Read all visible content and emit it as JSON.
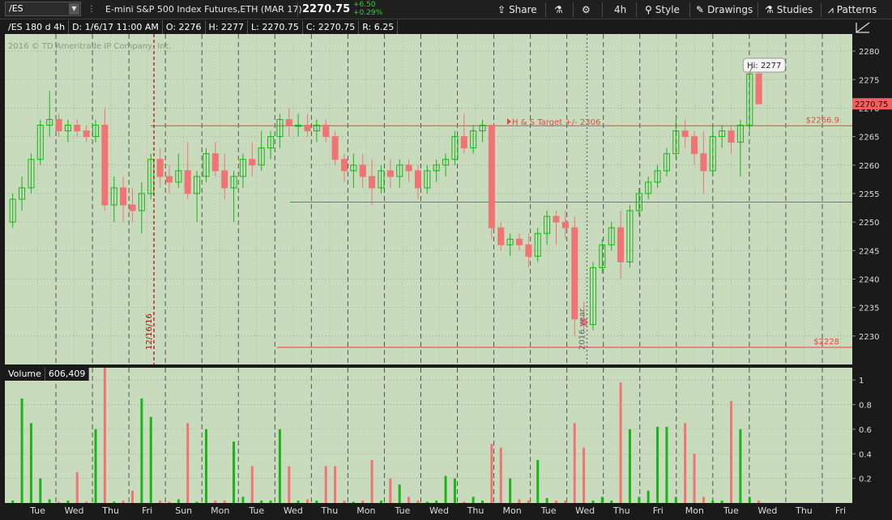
{
  "toolbar": {
    "symbol": "/ES",
    "description": "E-mini S&P 500 Index Futures,ETH (MAR 17)",
    "last_price": "2270.75",
    "change": "+6.50",
    "change_pct": "+0.29%",
    "share_label": "Share",
    "timeframe_label": "4h",
    "style_label": "Style",
    "drawings_label": "Drawings",
    "studies_label": "Studies",
    "patterns_label": "Patterns"
  },
  "info_bar": {
    "chart_name": "/ES 180 d 4h",
    "date": "D: 1/6/17 11:00 AM",
    "open": "O: 2276",
    "high": "H: 2277",
    "low": "L: 2270.75",
    "close": "C: 2270.75",
    "range": "R: 6.25"
  },
  "watermark": "2016 © TD Ameritrade IP Company, Inc.",
  "volume_header": {
    "label": "Volume",
    "value": "606,409"
  },
  "colors": {
    "up": "#18b418",
    "down": "#f07474",
    "panel_bg": "#c8dcbd",
    "hline": "#e64646",
    "price_tag": "#f06060"
  },
  "chart_data": [
    {
      "type": "candlestick",
      "ylim": [
        2225,
        2283
      ],
      "yticks": [
        2230,
        2235,
        2240,
        2245,
        2250,
        2255,
        2260,
        2265,
        2270,
        2275,
        2280
      ],
      "x_day_labels": [
        "Tue",
        "Wed",
        "Thu",
        "Fri",
        "Sun",
        "Mon",
        "Tue",
        "Wed",
        "Thu",
        "Mon",
        "Tue",
        "Wed",
        "Thu",
        "Mon",
        "Tue",
        "Wed",
        "Thu",
        "Fri",
        "Mon",
        "Tue",
        "Wed",
        "Thu",
        "Fri"
      ],
      "candles": [
        [
          2250,
          2255,
          2249,
          2254
        ],
        [
          2254,
          2258,
          2252,
          2256
        ],
        [
          2256,
          2262,
          2255,
          2261
        ],
        [
          2261,
          2268,
          2260,
          2267
        ],
        [
          2267,
          2273,
          2265,
          2268
        ],
        [
          2268,
          2269,
          2265,
          2266
        ],
        [
          2266,
          2268,
          2264,
          2267
        ],
        [
          2267,
          2268,
          2265,
          2266
        ],
        [
          2266,
          2267,
          2264,
          2265
        ],
        [
          2265,
          2268,
          2264,
          2267
        ],
        [
          2267,
          2270,
          2252,
          2253
        ],
        [
          2253,
          2258,
          2250,
          2256
        ],
        [
          2256,
          2258,
          2250,
          2253
        ],
        [
          2253,
          2256,
          2250,
          2252
        ],
        [
          2252,
          2257,
          2248,
          2255
        ],
        [
          2255,
          2262,
          2254,
          2261
        ],
        [
          2261,
          2263,
          2256,
          2258
        ],
        [
          2258,
          2260,
          2255,
          2257
        ],
        [
          2257,
          2262,
          2256,
          2259
        ],
        [
          2259,
          2264,
          2254,
          2255
        ],
        [
          2255,
          2259,
          2250,
          2258
        ],
        [
          2258,
          2263,
          2257,
          2262
        ],
        [
          2262,
          2264,
          2258,
          2259
        ],
        [
          2259,
          2262,
          2254,
          2256
        ],
        [
          2256,
          2259,
          2250,
          2258
        ],
        [
          2258,
          2262,
          2256,
          2261
        ],
        [
          2261,
          2264,
          2258,
          2260
        ],
        [
          2260,
          2266,
          2259,
          2263
        ],
        [
          2263,
          2266,
          2261,
          2265
        ],
        [
          2265,
          2269,
          2263,
          2268
        ],
        [
          2268,
          2270,
          2265,
          2267
        ],
        [
          2267,
          2269,
          2265,
          2267
        ],
        [
          2267,
          2269,
          2265,
          2266
        ],
        [
          2266,
          2268,
          2264,
          2267
        ],
        [
          2267,
          2268,
          2264,
          2265
        ],
        [
          2265,
          2266,
          2260,
          2261
        ],
        [
          2261,
          2262,
          2257,
          2259
        ],
        [
          2259,
          2262,
          2256,
          2260
        ],
        [
          2260,
          2262,
          2256,
          2258
        ],
        [
          2258,
          2261,
          2253,
          2256
        ],
        [
          2256,
          2260,
          2255,
          2259
        ],
        [
          2259,
          2261,
          2256,
          2258
        ],
        [
          2258,
          2261,
          2256,
          2260
        ],
        [
          2260,
          2261,
          2257,
          2259
        ],
        [
          2259,
          2260,
          2254,
          2256
        ],
        [
          2256,
          2260,
          2255,
          2259
        ],
        [
          2259,
          2261,
          2257,
          2260
        ],
        [
          2260,
          2262,
          2258,
          2261
        ],
        [
          2261,
          2266,
          2260,
          2265
        ],
        [
          2265,
          2269,
          2262,
          2263
        ],
        [
          2263,
          2267,
          2262,
          2266
        ],
        [
          2266,
          2268,
          2264,
          2267
        ],
        [
          2267,
          2267,
          2247,
          2249
        ],
        [
          2249,
          2250,
          2245,
          2246
        ],
        [
          2246,
          2248,
          2244,
          2247
        ],
        [
          2247,
          2248,
          2245,
          2246
        ],
        [
          2246,
          2248,
          2242,
          2244
        ],
        [
          2244,
          2249,
          2243,
          2248
        ],
        [
          2248,
          2252,
          2246,
          2251
        ],
        [
          2251,
          2252,
          2246,
          2250
        ],
        [
          2250,
          2252,
          2247,
          2249
        ],
        [
          2249,
          2251,
          2230,
          2233
        ],
        [
          2233,
          2236,
          2231,
          2232
        ],
        [
          2232,
          2243,
          2231,
          2242
        ],
        [
          2242,
          2247,
          2241,
          2246
        ],
        [
          2246,
          2250,
          2245,
          2249
        ],
        [
          2249,
          2252,
          2240,
          2243
        ],
        [
          2243,
          2253,
          2242,
          2252
        ],
        [
          2252,
          2256,
          2251,
          2255
        ],
        [
          2255,
          2258,
          2254,
          2257
        ],
        [
          2257,
          2260,
          2256,
          2259
        ],
        [
          2259,
          2263,
          2258,
          2262
        ],
        [
          2262,
          2268,
          2261,
          2266
        ],
        [
          2266,
          2268,
          2263,
          2265
        ],
        [
          2265,
          2266,
          2260,
          2262
        ],
        [
          2262,
          2266,
          2255,
          2259
        ],
        [
          2259,
          2267,
          2258,
          2265
        ],
        [
          2265,
          2267,
          2263,
          2266
        ],
        [
          2266,
          2267,
          2262,
          2264
        ],
        [
          2264,
          2268,
          2258,
          2267
        ],
        [
          2267,
          2277,
          2266,
          2276
        ],
        [
          2276,
          2277,
          2270.75,
          2270.75
        ]
      ],
      "horizontal_levels": [
        {
          "value": 2266.9,
          "label": "$2266.9"
        },
        {
          "value": 2253.5,
          "label": ""
        },
        {
          "value": 2228,
          "label": "$2228"
        }
      ],
      "annotations": [
        {
          "text": "H & S Target +/- 2306"
        },
        {
          "text": "Hi: 2277"
        },
        {
          "text": "12/16/16"
        },
        {
          "text": "2016 year"
        }
      ],
      "last_price_tag": "2270.75"
    },
    {
      "type": "bar",
      "title": "Volume",
      "ylim": [
        0,
        1.1
      ],
      "yticks": [
        0.2,
        0.4,
        0.6,
        0.8,
        1
      ],
      "volumes": [
        0.02,
        0.85,
        0.65,
        0.2,
        0.03,
        0.01,
        0.02,
        0.25,
        0.01,
        0.6,
        1.1,
        0.01,
        0.02,
        0.1,
        0.85,
        0.7,
        0.02,
        0.01,
        0.03,
        0.65,
        0.01,
        0.6,
        0.02,
        0.02,
        0.5,
        0.05,
        0.3,
        0.02,
        0.02,
        0.6,
        0.3,
        0.02,
        0.03,
        0.02,
        0.3,
        0.3,
        0.02,
        0.01,
        0.02,
        0.35,
        0.02,
        0.2,
        0.15,
        0.05,
        0.02,
        0.01,
        0.02,
        0.22,
        0.2,
        0.01,
        0.05,
        0.02,
        0.48,
        0.45,
        0.2,
        0.03,
        0.02,
        0.35,
        0.04,
        0.02,
        0.02,
        0.65,
        0.45,
        0.02,
        0.05,
        0.02,
        0.98,
        0.6,
        0.05,
        0.1,
        0.62,
        0.62,
        0.05,
        0.65,
        0.4,
        0.05,
        0.02,
        0.02,
        0.83,
        0.6,
        0.05,
        0.02
      ]
    }
  ]
}
